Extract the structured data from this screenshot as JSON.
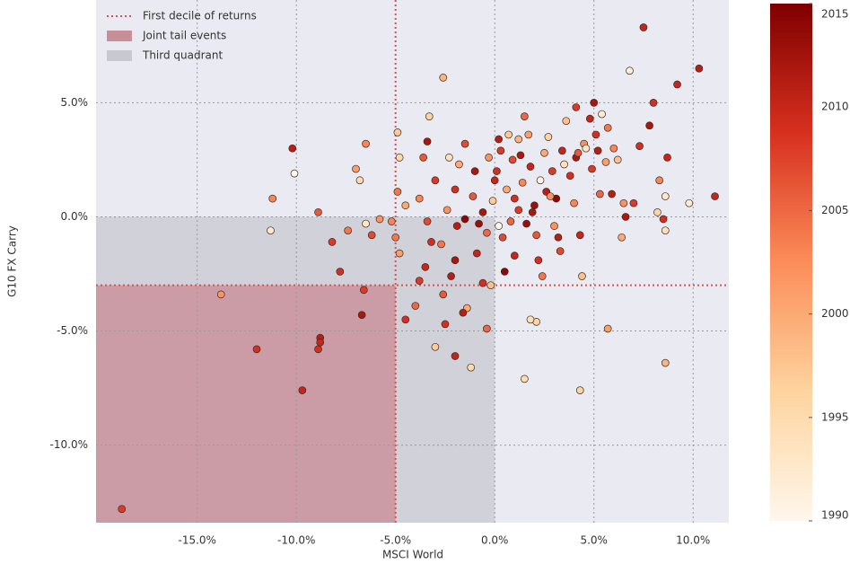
{
  "chart_data": {
    "type": "scatter",
    "xlabel": "MSCI World",
    "ylabel": "G10 FX Carry",
    "xlim": [
      -20.1,
      11.8
    ],
    "ylim": [
      -13.4,
      9.5
    ],
    "xticks": [
      {
        "value": -15,
        "label": "-15.0%"
      },
      {
        "value": -10,
        "label": "-10.0%"
      },
      {
        "value": -5,
        "label": "-5.0%"
      },
      {
        "value": 0,
        "label": "0.0%"
      },
      {
        "value": 5,
        "label": "5.0%"
      },
      {
        "value": 10,
        "label": "10.0%"
      }
    ],
    "yticks": [
      {
        "value": -10,
        "label": "-10.0%"
      },
      {
        "value": -5,
        "label": "-5.0%"
      },
      {
        "value": 0,
        "label": "0.0%"
      },
      {
        "value": 5,
        "label": "5.0%"
      }
    ],
    "grid": true,
    "x_threshold": -5,
    "y_threshold": -3,
    "legend": [
      {
        "name": "First decile of returns",
        "color": "#d9534f",
        "style": "line"
      },
      {
        "name": "Joint tail events",
        "color": "#c98f98",
        "style": "patch"
      },
      {
        "name": "Third quadrant",
        "color": "#c8c8d0",
        "style": "patch"
      }
    ],
    "legend_position": "upper left",
    "colormap": [
      "#fff7ec",
      "#fdd49e",
      "#fc8d59",
      "#d7301f",
      "#7f0000"
    ],
    "clim": [
      1990,
      2015
    ],
    "cticks": [
      1990,
      1995,
      2000,
      2005,
      2010,
      2015
    ],
    "x": [
      -18.8,
      -13.8,
      -12.0,
      -9.7,
      -8.8,
      -8.8,
      -8.9,
      -6.7,
      -6.6,
      -10.2,
      -10.1,
      -11.2,
      -11.3,
      -8.9,
      -8.2,
      -7.8,
      -7.4,
      -7.0,
      -6.8,
      -6.5,
      -6.5,
      -6.2,
      -5.8,
      -5.2,
      -5.0,
      -4.8,
      -4.9,
      -4.5,
      -4.5,
      -2.5,
      -3.0,
      -2.0,
      -1.2,
      -1.4,
      -0.4,
      -1.6,
      7.5,
      10.3,
      9.2,
      6.8,
      -2.6,
      8.0,
      11.1,
      8.6,
      9.8,
      8.6,
      8.6,
      4.3,
      1.5,
      5.7,
      2.1,
      1.8,
      -4.9,
      -4.8,
      -3.3,
      -3.0,
      -3.6,
      -3.8,
      -3.4,
      -3.2,
      -3.5,
      -3.8,
      -4.0,
      -2.6,
      -2.2,
      -2.0,
      -2.7,
      -2.4,
      -2.0,
      -1.8,
      -1.5,
      -1.0,
      -1.1,
      -0.8,
      -0.9,
      -0.6,
      -0.2,
      -0.4,
      -0.1,
      0.1,
      0.3,
      0.2,
      -0.3,
      0.6,
      0.4,
      0.5,
      1.0,
      1.2,
      1.4,
      1.3,
      1.2,
      1.5,
      1.7,
      1.8,
      2.0,
      2.1,
      2.2,
      2.4,
      2.6,
      2.5,
      2.7,
      2.9,
      3.1,
      3.0,
      3.3,
      3.4,
      3.6,
      3.8,
      4.0,
      4.1,
      4.3,
      4.4,
      4.5,
      4.8,
      4.9,
      5.0,
      5.1,
      5.3,
      5.6,
      5.7,
      5.9,
      6.2,
      6.4,
      6.5,
      6.0,
      7.0,
      7.3,
      7.8,
      8.5,
      8.7,
      8.3,
      8.2,
      4.6,
      5.2,
      5.4,
      4.2,
      3.5,
      2.8,
      1.9,
      0.8,
      -1.9,
      -2.3,
      0.0,
      0.9,
      1.6,
      2.3,
      3.2,
      -0.6,
      0.2,
      1.0,
      -3.4,
      0.7,
      -1.5,
      4.1,
      6.6
    ],
    "values": [
      -12.8,
      -3.4,
      -5.8,
      -7.6,
      -5.3,
      -5.5,
      -5.8,
      -4.3,
      -3.2,
      3.0,
      1.9,
      0.8,
      -0.6,
      0.2,
      -1.1,
      -2.4,
      -0.6,
      2.1,
      1.6,
      3.2,
      -0.3,
      -0.8,
      -0.1,
      -0.2,
      -0.9,
      -1.6,
      1.1,
      0.5,
      -4.5,
      -4.7,
      -5.7,
      -6.1,
      -6.6,
      -4.0,
      -4.9,
      -4.2,
      8.3,
      6.5,
      5.8,
      6.4,
      6.1,
      5.0,
      0.9,
      0.9,
      0.6,
      -0.6,
      -6.4,
      -7.6,
      -7.1,
      -4.9,
      -4.6,
      -4.5,
      3.7,
      2.6,
      4.4,
      1.6,
      2.6,
      0.8,
      -0.2,
      -1.1,
      -2.2,
      -2.8,
      -3.9,
      -3.4,
      -2.6,
      -1.9,
      -1.2,
      0.3,
      1.2,
      2.3,
      3.2,
      2.0,
      0.9,
      -0.3,
      -1.6,
      -2.9,
      -3.0,
      -0.7,
      0.7,
      2.0,
      2.9,
      3.4,
      2.6,
      1.2,
      -0.9,
      -2.4,
      -1.7,
      0.3,
      1.5,
      2.7,
      3.4,
      4.4,
      3.6,
      2.2,
      0.5,
      -0.8,
      -1.9,
      -2.6,
      1.1,
      2.8,
      3.5,
      2.0,
      0.8,
      -0.4,
      -1.5,
      2.9,
      4.2,
      1.8,
      0.6,
      2.6,
      -0.8,
      -2.6,
      3.2,
      4.3,
      2.1,
      5.0,
      3.6,
      1.0,
      2.4,
      3.9,
      1.0,
      2.5,
      -0.9,
      0.6,
      3.0,
      0.6,
      3.1,
      4.0,
      -0.1,
      2.6,
      1.6,
      0.2,
      3.0,
      2.9,
      4.5,
      2.8,
      2.3,
      0.9,
      0.2,
      -0.2,
      -0.4,
      2.6,
      1.6,
      2.5,
      -0.3,
      1.6,
      -0.9,
      0.2,
      -0.4,
      0.8,
      3.3,
      3.6,
      -0.1,
      4.8,
      0.0
    ],
    "color_values": [
      2008,
      2002,
      2009,
      2010,
      2011,
      2010,
      2009,
      2012,
      2008,
      2011,
      1990,
      2003,
      1993,
      2006,
      2008,
      2009,
      2004,
      2001,
      1995,
      2003,
      1993,
      2007,
      2002,
      2003,
      2004,
      2001,
      2004,
      2000,
      2009,
      2009,
      1997,
      2010,
      1995,
      2000,
      2005,
      2011,
      2010,
      2011,
      2010,
      1992,
      1999,
      2009,
      2010,
      1993,
      1992,
      1994,
      1999,
      1996,
      1995,
      2001,
      1996,
      1994,
      1997,
      1995,
      1996,
      2008,
      2006,
      2003,
      2007,
      2009,
      2010,
      2008,
      2005,
      2006,
      2011,
      2012,
      2004,
      2002,
      2009,
      2000,
      2007,
      2012,
      2006,
      2013,
      2010,
      2009,
      1998,
      2005,
      1997,
      2009,
      2008,
      2011,
      2002,
      2000,
      2007,
      2014,
      2010,
      2008,
      2003,
      2012,
      1999,
      2005,
      2001,
      2010,
      2013,
      2006,
      2009,
      2004,
      2011,
      2000,
      1996,
      2008,
      2014,
      2002,
      2007,
      2010,
      1998,
      2009,
      2003,
      2012,
      2010,
      1998,
      2002,
      2010,
      2008,
      2012,
      2009,
      2005,
      2001,
      2004,
      2011,
      1998,
      2000,
      2002,
      2003,
      2008,
      2009,
      2012,
      2009,
      2010,
      2003,
      1996,
      1993,
      2011,
      1992,
      2006,
      1994,
      2002,
      2012,
      2005,
      2011,
      1994,
      2010,
      2007,
      2013,
      1991,
      2011,
      2012,
      1990,
      2009,
      2012,
      1997,
      2014,
      2008,
      2012
    ]
  }
}
